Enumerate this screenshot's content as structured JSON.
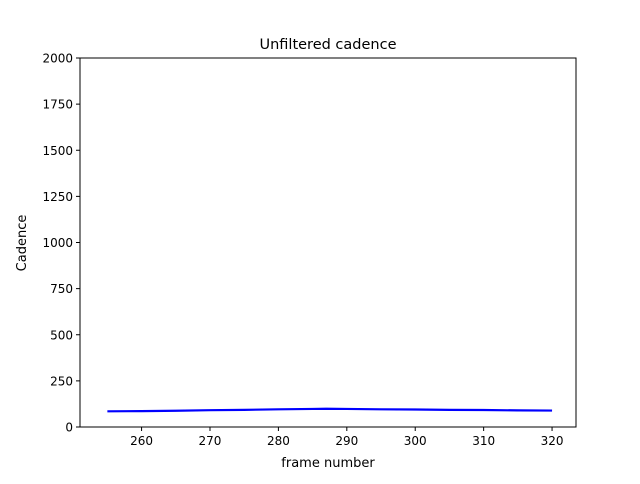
{
  "chart_data": {
    "type": "line",
    "title": "Unfiltered cadence",
    "xlabel": "frame number",
    "ylabel": "Cadence",
    "xlim": [
      251,
      323.5
    ],
    "ylim": [
      0,
      2000
    ],
    "xticks": [
      260,
      270,
      280,
      290,
      300,
      310,
      320
    ],
    "yticks": [
      0,
      250,
      500,
      750,
      1000,
      1250,
      1500,
      1750,
      2000
    ],
    "grid": false,
    "legend": "none",
    "series": [
      {
        "color": "#0000ff",
        "x": [
          255,
          260,
          265,
          270,
          275,
          280,
          285,
          287,
          290,
          295,
          300,
          305,
          310,
          315,
          320
        ],
        "y": [
          85,
          86,
          88,
          91,
          93,
          96,
          98,
          99,
          98,
          96,
          95,
          93,
          92,
          90,
          89
        ]
      }
    ]
  }
}
